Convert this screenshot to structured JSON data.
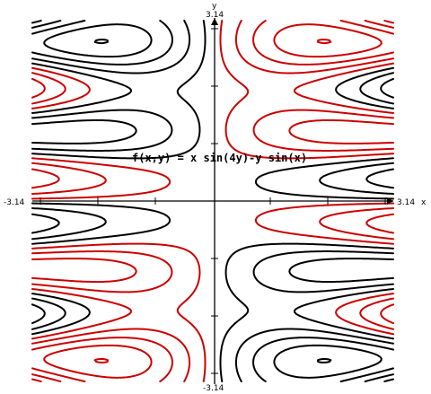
{
  "chart_data": {
    "type": "contour",
    "title": "f(x,y) = x sin(4y)-y sin(x)",
    "xlabel": "x",
    "ylabel": "y",
    "xlim": [
      -3.14,
      3.14
    ],
    "ylim": [
      -3.14,
      3.14
    ],
    "x_tick_labels": {
      "min": "-3.14",
      "max": "3.14"
    },
    "y_tick_labels": {
      "min": "-3.14",
      "max": "3.14"
    },
    "grid": false,
    "legend": "none",
    "series": [
      {
        "color": "#000000",
        "levels": [
          0.5,
          1.5,
          2.5,
          3.5,
          4.5
        ]
      },
      {
        "color": "#cc0000",
        "levels": [
          -0.5,
          -1.5,
          -2.5,
          -3.5,
          -4.5
        ]
      }
    ]
  },
  "colors": {
    "positive": "#000000",
    "negative": "#cc0000"
  }
}
